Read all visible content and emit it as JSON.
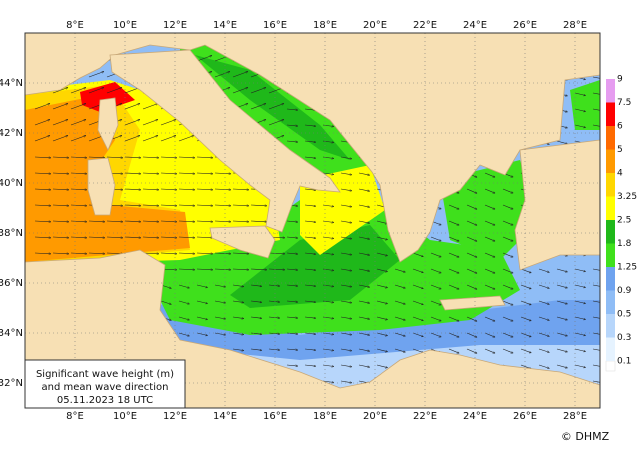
{
  "map": {
    "lon_labels": [
      "8°E",
      "10°E",
      "12°E",
      "14°E",
      "16°E",
      "18°E",
      "20°E",
      "22°E",
      "24°E",
      "26°E",
      "28°E"
    ],
    "lat_labels": [
      "44°N",
      "42°N",
      "40°N",
      "38°N",
      "36°N",
      "34°N",
      "32°N"
    ],
    "legend": {
      "levels": [
        0.1,
        0.3,
        0.5,
        0.9,
        1.25,
        1.8,
        2.5,
        3.25,
        4,
        5,
        6,
        7.5,
        9
      ],
      "colors": [
        "#e6f3ff",
        "#b7d6fb",
        "#8fbdf6",
        "#6fa3ef",
        "#3fe01c",
        "#1fb81a",
        "#ffff00",
        "#ffd700",
        "#ff9a00",
        "#ff6a00",
        "#ff0000",
        "#e69cf0",
        "#9b30ff"
      ]
    },
    "caption": [
      "Significant wave height (m)",
      "and mean wave direction",
      "05.11.2023 18  UTC"
    ],
    "credit": "© DHMZ"
  }
}
